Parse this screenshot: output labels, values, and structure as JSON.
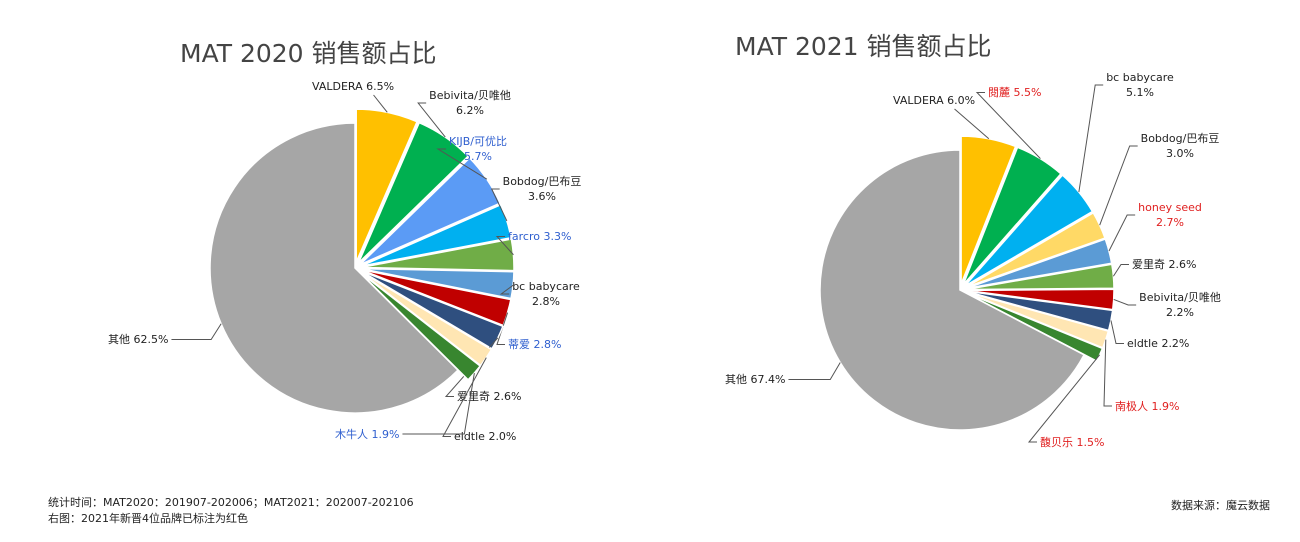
{
  "chart_data": [
    {
      "type": "pie",
      "title": "MAT 2020 销售额占比",
      "colors": {
        "VALDERA": "#FFC000",
        "Bebivita/贝唯他": "#00B050",
        "KIJB/可优比": "#5B9BF5",
        "Bobdog/巴布豆": "#00B0F0",
        "farcro": "#70AD47",
        "bc babycare": "#5B9BD5",
        "蒂爱": "#C00000",
        "爱里奇": "#2F4F7F",
        "eldtle": "#FFE6B3",
        "木牛人": "#38862F",
        "其他": "#A6A6A6"
      },
      "slices": [
        {
          "name": "VALDERA",
          "value": 6.5,
          "label": "VALDERA 6.5%",
          "label_color": "#222222"
        },
        {
          "name": "Bebivita/贝唯他",
          "value": 6.2,
          "label": "Bebivita/贝唯他\n6.2%",
          "label_color": "#222222"
        },
        {
          "name": "KIJB/可优比",
          "value": 5.7,
          "label": "KIJB/可优比\n5.7%",
          "label_color": "#2F5FCF"
        },
        {
          "name": "Bobdog/巴布豆",
          "value": 3.6,
          "label": "Bobdog/巴布豆\n3.6%",
          "label_color": "#222222"
        },
        {
          "name": "farcro",
          "value": 3.3,
          "label": "farcro 3.3%",
          "label_color": "#2F5FCF"
        },
        {
          "name": "bc babycare",
          "value": 2.8,
          "label": "bc babycare\n2.8%",
          "label_color": "#222222"
        },
        {
          "name": "蒂爱",
          "value": 2.8,
          "label": "蒂爱 2.8%",
          "label_color": "#2F5FCF"
        },
        {
          "name": "爱里奇",
          "value": 2.6,
          "label": "爱里奇 2.6%",
          "label_color": "#222222"
        },
        {
          "name": "eldtle",
          "value": 2.0,
          "label": "eldtle 2.0%",
          "label_color": "#222222"
        },
        {
          "name": "木牛人",
          "value": 1.9,
          "label": "木牛人 1.9%",
          "label_color": "#2F5FCF"
        },
        {
          "name": "其他",
          "value": 62.5,
          "label": "其他 62.5%",
          "label_color": "#222222"
        }
      ]
    },
    {
      "type": "pie",
      "title": "MAT 2021 销售额占比",
      "colors": {
        "VALDERA": "#FFC000",
        "閱麓": "#00B050",
        "bc babycare": "#00B0F0",
        "Bobdog/巴布豆": "#FFD966",
        "honey seed": "#5B9BD5",
        "爱里奇": "#70AD47",
        "Bebivita/贝唯他": "#C00000",
        "eldtle": "#2F4F7F",
        "南极人": "#FFE6B3",
        "馥贝乐": "#38862F",
        "其他": "#A6A6A6"
      },
      "slices": [
        {
          "name": "VALDERA",
          "value": 6.0,
          "label": "VALDERA 6.0%",
          "label_color": "#222222"
        },
        {
          "name": "閱麓",
          "value": 5.5,
          "label": "閱麓 5.5%",
          "label_color": "#E02020"
        },
        {
          "name": "bc babycare",
          "value": 5.1,
          "label": "bc babycare\n5.1%",
          "label_color": "#222222"
        },
        {
          "name": "Bobdog/巴布豆",
          "value": 3.0,
          "label": "Bobdog/巴布豆\n3.0%",
          "label_color": "#222222"
        },
        {
          "name": "honey seed",
          "value": 2.7,
          "label": "honey seed\n2.7%",
          "label_color": "#E02020"
        },
        {
          "name": "爱里奇",
          "value": 2.6,
          "label": "爱里奇 2.6%",
          "label_color": "#222222"
        },
        {
          "name": "Bebivita/贝唯他",
          "value": 2.2,
          "label": "Bebivita/贝唯他\n2.2%",
          "label_color": "#222222"
        },
        {
          "name": "eldtle",
          "value": 2.2,
          "label": "eldtle 2.2%",
          "label_color": "#222222"
        },
        {
          "name": "南极人",
          "value": 1.9,
          "label": "南极人 1.9%",
          "label_color": "#E02020"
        },
        {
          "name": "馥贝乐",
          "value": 1.5,
          "label": "馥贝乐 1.5%",
          "label_color": "#E02020"
        },
        {
          "name": "其他",
          "value": 67.4,
          "label": "其他 67.4%",
          "label_color": "#222222"
        }
      ]
    }
  ],
  "footer": {
    "note_line1": "统计时间：MAT2020：201907-202006；MAT2021：202007-202106",
    "note_line2": "右图：2021年新晋4位品牌已标注为红色",
    "source": "数据来源：魔云数据"
  }
}
